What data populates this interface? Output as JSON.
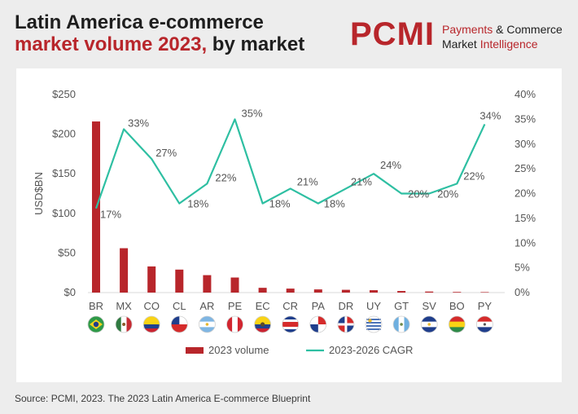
{
  "header": {
    "title_line1": "Latin America e-commerce",
    "title_line2_red": "market volume 2023,",
    "title_line2_dark": " by market"
  },
  "brand": {
    "logo": "PCMI",
    "tagline_a_red": "Payments",
    "tagline_a_dark": " & Commerce",
    "tagline_b_dark": "Market ",
    "tagline_b_red": "Intelligence"
  },
  "colors": {
    "bar": "#b8262b",
    "line": "#2ebfa2",
    "accent": "#b8262b"
  },
  "chart_data": {
    "type": "bar",
    "categories": [
      "BR",
      "MX",
      "CO",
      "CL",
      "AR",
      "PE",
      "EC",
      "CR",
      "PA",
      "DR",
      "UY",
      "GT",
      "SV",
      "BO",
      "PY"
    ],
    "series": [
      {
        "name": "2023 volume",
        "type": "bar",
        "axis": "left",
        "values": [
          216,
          56,
          33,
          29,
          22,
          19,
          6,
          5,
          4,
          3.5,
          3,
          2,
          1.3,
          0.8,
          0.6
        ]
      },
      {
        "name": "2023-2026 CAGR",
        "type": "line",
        "axis": "right",
        "values": [
          17,
          33,
          27,
          18,
          22,
          35,
          18,
          21,
          18,
          21,
          24,
          20,
          20,
          22,
          34
        ],
        "labels": [
          "17%",
          "33%",
          "27%",
          "18%",
          "22%",
          "35%",
          "18%",
          "21%",
          "18%",
          "21%",
          "24%",
          "20%",
          "20%",
          "22%",
          "34%"
        ]
      }
    ],
    "ylabel": "USD$BN",
    "ylim": [
      0,
      250
    ],
    "yticks": [
      0,
      50,
      100,
      150,
      200,
      250
    ],
    "ytick_labels": [
      "$0",
      "$50",
      "$100",
      "$150",
      "$200",
      "$250"
    ],
    "y2lim": [
      0,
      40
    ],
    "y2ticks": [
      0,
      5,
      10,
      15,
      20,
      25,
      30,
      35,
      40
    ],
    "y2tick_labels": [
      "0%",
      "5%",
      "10%",
      "15%",
      "20%",
      "25%",
      "30%",
      "35%",
      "40%"
    ],
    "legend": [
      "2023 volume",
      "2023-2026 CAGR"
    ],
    "legend_position": "bottom-center",
    "grid": false
  },
  "flag_icons": [
    "brazil-flag-icon",
    "mexico-flag-icon",
    "colombia-flag-icon",
    "chile-flag-icon",
    "argentina-flag-icon",
    "peru-flag-icon",
    "ecuador-flag-icon",
    "costa-rica-flag-icon",
    "panama-flag-icon",
    "dominican-republic-flag-icon",
    "uruguay-flag-icon",
    "guatemala-flag-icon",
    "el-salvador-flag-icon",
    "bolivia-flag-icon",
    "paraguay-flag-icon"
  ],
  "footer": {
    "source": "Source: PCMI, 2023. The 2023 Latin America E-commerce Blueprint"
  }
}
